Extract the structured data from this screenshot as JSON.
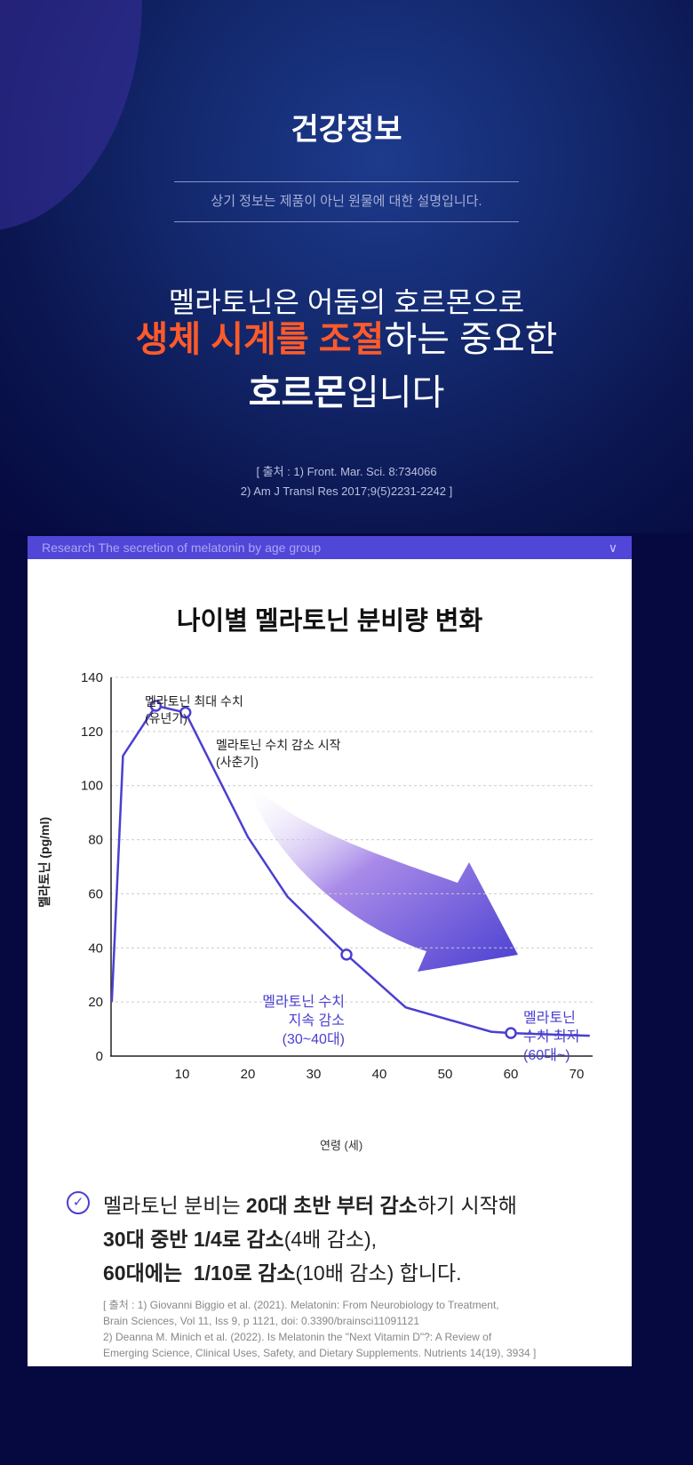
{
  "hero": {
    "title": "건강정보",
    "notice": "상기 정보는 제품이 아닌 원물에 대한 설명입니다.",
    "line1": "멜라토닌은 어둠의 호르몬으로",
    "line2_highlight": "생체 시계를 조절",
    "line2_rest": "하는 중요한",
    "line3_bold": "호르몬",
    "line3_rest": "입니다",
    "source_1": "[ 출처 : 1) Front. Mar. Sci. 8:734066",
    "source_2": "2) Am J Transl Res 2017;9(5)2231-2242 ]"
  },
  "card": {
    "header": "Research The secretion of melatonin by age group",
    "chevron": "∨"
  },
  "chart_data": {
    "type": "line",
    "title": "나이별 멜라토닌 분비량 변화",
    "xlabel": "연령 (세)",
    "ylabel": "멜라토닌 (pg/ml)",
    "xlim": [
      0,
      72
    ],
    "ylim": [
      0,
      140
    ],
    "xticks": [
      10,
      20,
      30,
      40,
      50,
      60,
      70
    ],
    "yticks": [
      0,
      20,
      40,
      60,
      80,
      100,
      120,
      140
    ],
    "grid": true,
    "series": [
      {
        "name": "melatonin",
        "x": [
          -0.7,
          1,
          6,
          10.5,
          20,
          26,
          35,
          44,
          57,
          60,
          72
        ],
        "y": [
          20,
          111,
          129.5,
          127,
          81,
          59,
          37.5,
          18,
          9,
          8.5,
          7.5
        ]
      }
    ],
    "markers": [
      {
        "x": 6,
        "y": 129.5
      },
      {
        "x": 10.5,
        "y": 127
      },
      {
        "x": 35,
        "y": 37.5
      },
      {
        "x": 60,
        "y": 8.5
      }
    ],
    "annotations": {
      "peak": [
        "멜라토닌 최대 수치",
        "(유년기)"
      ],
      "start": [
        "멜라토닌 수치 감소 시작",
        "(사춘기)"
      ],
      "mid": [
        "멜라토닌 수치",
        "지속 감소",
        "(30~40대)"
      ],
      "low": [
        "멜라토닌",
        "수치 최저",
        "(60대~)"
      ]
    },
    "color": "#4a3fd1"
  },
  "summary": {
    "l1a": "멜라토닌 분비는 ",
    "l1b": "20대 초반 부터 감소",
    "l1c": "하기 시작해",
    "l2a": "30대 중반 1/4로 감소",
    "l2b": "(4배 감소),",
    "l3a": "60대에는  1/10로 감소",
    "l3b": "(10배 감소) 합니다.",
    "check": "✓"
  },
  "sources": [
    "[ 출처 : 1) Giovanni Biggio et al. (2021). Melatonin: From Neurobiology to Treatment,",
    "Brain Sciences, Vol 11, Iss 9, p 1121, doi: 0.3390/brainsci11091121",
    "2) Deanna M. Minich et al. (2022). Is Melatonin the \"Next Vitamin D\"?: A Review of",
    "Emerging Science, Clinical Uses, Safety, and Dietary Supplements. Nutrients 14(19), 3934 ]"
  ]
}
